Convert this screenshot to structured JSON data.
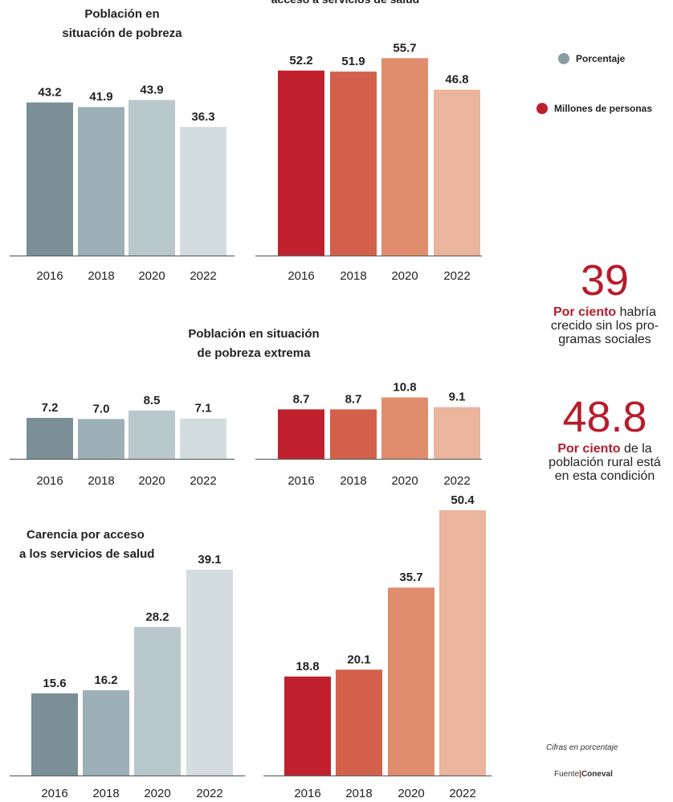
{
  "page_title_partial": "acceso a servicios de salud",
  "legend": {
    "porcentaje": "Porcentaje",
    "millones": "Millones de personas"
  },
  "stats": [
    {
      "number": "39",
      "lead": "Por ciento",
      "rest": " habría crecido sin los pro- gramas sociales"
    },
    {
      "number": "48.8",
      "lead": "Por ciento",
      "rest": " de la población rural está en esta condición"
    }
  ],
  "footnote": "Cifras en porcentaje",
  "source_label": "Fuente",
  "source_name": "Coneval",
  "colors": {
    "grey": [
      "#7a8f96",
      "#9eb0b7",
      "#b9c8cc",
      "#d3dde0"
    ],
    "red": [
      "#c0202e",
      "#d2604a",
      "#df8d6d",
      "#ebb49c"
    ]
  },
  "chart_data": [
    {
      "type": "bar",
      "title": "Población en situación de pobreza",
      "categories": [
        "2016",
        "2018",
        "2020",
        "2022"
      ],
      "series": [
        {
          "name": "Porcentaje",
          "values": [
            43.2,
            41.9,
            43.9,
            36.3
          ]
        },
        {
          "name": "Millones de personas",
          "values": [
            52.2,
            51.9,
            55.7,
            46.8
          ]
        }
      ]
    },
    {
      "type": "bar",
      "title": "Población en situación de pobreza extrema",
      "categories": [
        "2016",
        "2018",
        "2020",
        "2022"
      ],
      "series": [
        {
          "name": "Porcentaje",
          "values": [
            7.2,
            7.0,
            8.5,
            7.1
          ]
        },
        {
          "name": "Millones de personas",
          "values": [
            8.7,
            8.7,
            10.8,
            9.1
          ]
        }
      ]
    },
    {
      "type": "bar",
      "title": "Carencia por acceso a los servicios de salud",
      "categories": [
        "2016",
        "2018",
        "2020",
        "2022"
      ],
      "series": [
        {
          "name": "Porcentaje",
          "values": [
            15.6,
            16.2,
            28.2,
            39.1
          ]
        },
        {
          "name": "Millones de personas",
          "values": [
            18.8,
            20.1,
            35.7,
            50.4
          ]
        }
      ]
    }
  ]
}
